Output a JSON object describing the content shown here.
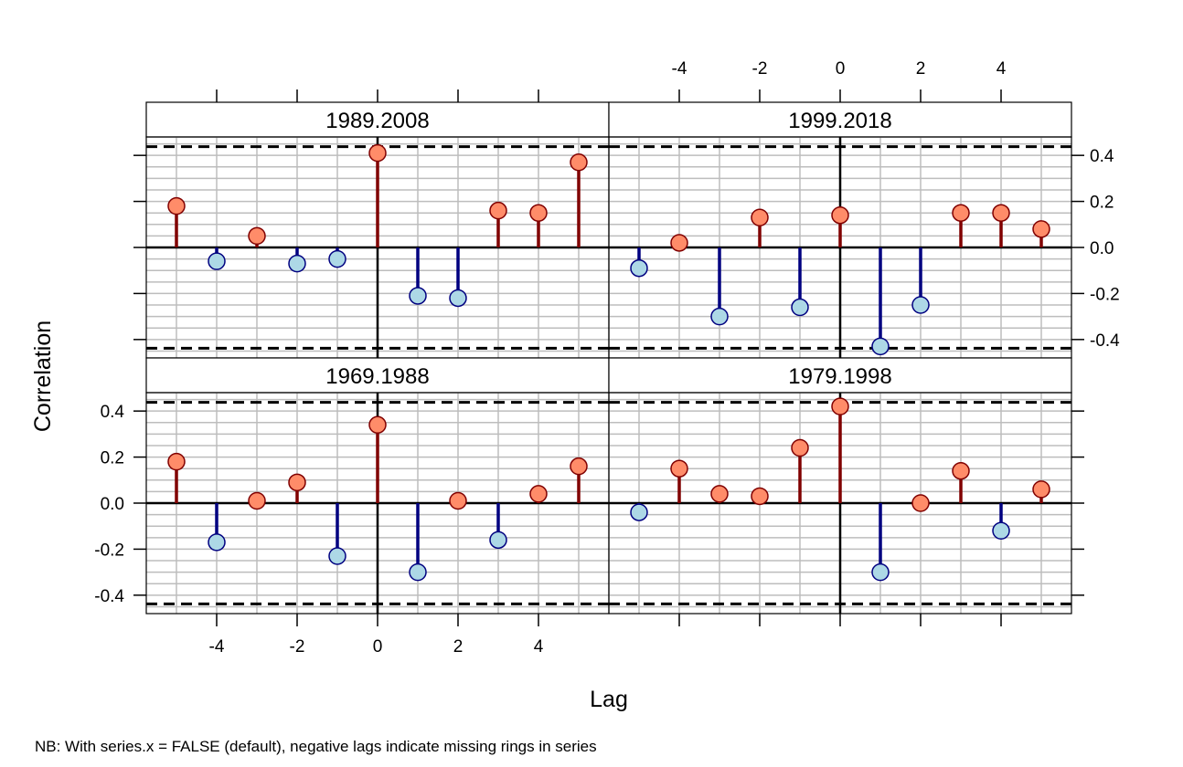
{
  "chart_data": {
    "type": "lollipop-ccf-panels",
    "ylabel": "Correlation",
    "xlabel": "Lag",
    "footnote": "NB: With series.x = FALSE (default), negative lags indicate missing rings in series",
    "x_ticks": [
      "-4",
      "-2",
      "0",
      "2",
      "4"
    ],
    "y_ticks": [
      "0.4",
      "0.2",
      "0.0",
      "-0.2",
      "-0.4"
    ],
    "xlim": [
      -5.75,
      5.75
    ],
    "ylim": [
      -0.48,
      0.48
    ],
    "confidence_level": 0.438,
    "grid": true,
    "lags": [
      -5,
      -4,
      -3,
      -2,
      -1,
      0,
      1,
      2,
      3,
      4,
      5
    ],
    "colors": {
      "positive_stem": "#800000",
      "positive_point": "#FF8C69",
      "negative_stem": "#000080",
      "negative_point": "#ADD8E6",
      "grid": "#bdbdbd"
    },
    "panels": [
      {
        "label": "1989.2008",
        "row": 0,
        "col": 0,
        "values": [
          0.18,
          -0.06,
          0.05,
          -0.07,
          -0.05,
          0.41,
          -0.21,
          -0.22,
          0.16,
          0.15,
          0.37
        ]
      },
      {
        "label": "1999.2018",
        "row": 0,
        "col": 1,
        "values": [
          -0.09,
          0.02,
          -0.3,
          0.13,
          -0.26,
          0.14,
          -0.43,
          -0.25,
          0.15,
          0.15,
          0.08
        ]
      },
      {
        "label": "1969.1988",
        "row": 1,
        "col": 0,
        "values": [
          0.18,
          -0.17,
          0.01,
          0.09,
          -0.23,
          0.34,
          -0.3,
          0.01,
          -0.16,
          0.04,
          0.16
        ]
      },
      {
        "label": "1979.1998",
        "row": 1,
        "col": 1,
        "values": [
          -0.04,
          0.15,
          0.04,
          0.03,
          0.24,
          0.42,
          -0.3,
          0.0,
          0.14,
          -0.12,
          0.06
        ]
      }
    ]
  }
}
